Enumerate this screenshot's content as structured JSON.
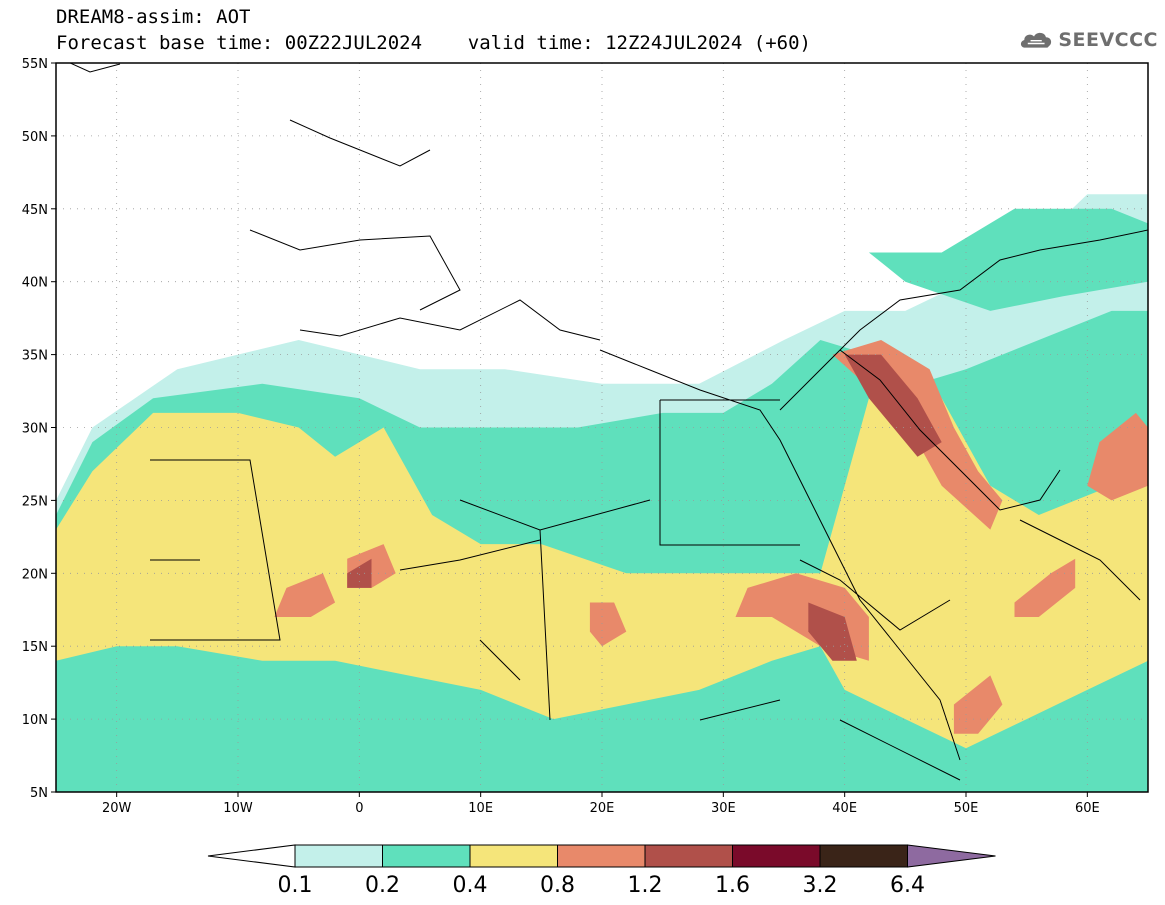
{
  "header": {
    "title_line1": "DREAM8-assim: AOT",
    "title_line2": "Forecast base time: 00Z22JUL2024    valid time: 12Z24JUL2024 (+60)"
  },
  "logo": {
    "text": "SEEVCCC",
    "icon": "cloud-icon",
    "color": "#6e6e6e"
  },
  "map": {
    "lon_range": [
      -25,
      65
    ],
    "lat_range": [
      5,
      55
    ],
    "lat_ticks": [
      {
        "value": 55,
        "label": "55N"
      },
      {
        "value": 50,
        "label": "50N"
      },
      {
        "value": 45,
        "label": "45N"
      },
      {
        "value": 40,
        "label": "40N"
      },
      {
        "value": 35,
        "label": "35N"
      },
      {
        "value": 30,
        "label": "30N"
      },
      {
        "value": 25,
        "label": "25N"
      },
      {
        "value": 20,
        "label": "20N"
      },
      {
        "value": 15,
        "label": "15N"
      },
      {
        "value": 10,
        "label": "10N"
      },
      {
        "value": 5,
        "label": "5N"
      }
    ],
    "lon_ticks": [
      {
        "value": -20,
        "label": "20W"
      },
      {
        "value": -10,
        "label": "10W"
      },
      {
        "value": 0,
        "label": "0"
      },
      {
        "value": 10,
        "label": "10E"
      },
      {
        "value": 20,
        "label": "20E"
      },
      {
        "value": 30,
        "label": "30E"
      },
      {
        "value": 40,
        "label": "40E"
      },
      {
        "value": 50,
        "label": "50E"
      },
      {
        "value": 60,
        "label": "60E"
      }
    ],
    "grid": true,
    "fields": [
      {
        "level": 0,
        "poly": [
          [
            -25,
            25
          ],
          [
            -22,
            30
          ],
          [
            -15,
            34
          ],
          [
            -5,
            36
          ],
          [
            5,
            34
          ],
          [
            12,
            34
          ],
          [
            20,
            33
          ],
          [
            28,
            33
          ],
          [
            35,
            36
          ],
          [
            40,
            38
          ],
          [
            45,
            38
          ],
          [
            50,
            40
          ],
          [
            55,
            42
          ],
          [
            60,
            46
          ],
          [
            65,
            46
          ],
          [
            65,
            5
          ],
          [
            -25,
            5
          ]
        ]
      },
      {
        "level": 1,
        "poly": [
          [
            -25,
            24
          ],
          [
            -22,
            29
          ],
          [
            -17,
            32
          ],
          [
            -8,
            33
          ],
          [
            0,
            32
          ],
          [
            5,
            30
          ],
          [
            12,
            30
          ],
          [
            18,
            30
          ],
          [
            25,
            31
          ],
          [
            30,
            31
          ],
          [
            34,
            33
          ],
          [
            38,
            36
          ],
          [
            42,
            35
          ],
          [
            46,
            33
          ],
          [
            50,
            34
          ],
          [
            56,
            36
          ],
          [
            62,
            38
          ],
          [
            65,
            38
          ],
          [
            65,
            5
          ],
          [
            -25,
            5
          ]
        ]
      },
      {
        "level": 1,
        "poly": [
          [
            42,
            42
          ],
          [
            48,
            42
          ],
          [
            54,
            45
          ],
          [
            62,
            45
          ],
          [
            65,
            44
          ],
          [
            65,
            40
          ],
          [
            58,
            39
          ],
          [
            52,
            38
          ],
          [
            45,
            40
          ]
        ]
      },
      {
        "level": 2,
        "poly": [
          [
            -25,
            23
          ],
          [
            -22,
            27
          ],
          [
            -17,
            31
          ],
          [
            -10,
            31
          ],
          [
            -5,
            30
          ],
          [
            -2,
            28
          ],
          [
            2,
            30
          ],
          [
            4,
            27
          ],
          [
            6,
            24
          ],
          [
            10,
            22
          ],
          [
            15,
            22
          ],
          [
            22,
            20
          ],
          [
            28,
            20
          ],
          [
            34,
            20
          ],
          [
            38,
            20
          ],
          [
            40,
            26
          ],
          [
            42,
            32
          ],
          [
            44,
            34
          ],
          [
            48,
            32
          ],
          [
            52,
            26
          ],
          [
            56,
            24
          ],
          [
            62,
            26
          ],
          [
            65,
            27
          ],
          [
            65,
            14
          ],
          [
            60,
            12
          ],
          [
            55,
            10
          ],
          [
            50,
            8
          ],
          [
            45,
            10
          ],
          [
            40,
            12
          ],
          [
            38,
            15
          ],
          [
            34,
            14
          ],
          [
            28,
            12
          ],
          [
            22,
            11
          ],
          [
            16,
            10
          ],
          [
            10,
            12
          ],
          [
            4,
            13
          ],
          [
            -2,
            14
          ],
          [
            -8,
            14
          ],
          [
            -15,
            15
          ],
          [
            -20,
            15
          ],
          [
            -25,
            14
          ]
        ]
      },
      {
        "level": 3,
        "poly": [
          [
            -6,
            19
          ],
          [
            -3,
            20
          ],
          [
            -2,
            18
          ],
          [
            -4,
            17
          ],
          [
            -7,
            17
          ]
        ]
      },
      {
        "level": 3,
        "poly": [
          [
            -1,
            21
          ],
          [
            2,
            22
          ],
          [
            3,
            20
          ],
          [
            1,
            19
          ],
          [
            -1,
            19
          ]
        ]
      },
      {
        "level": 3,
        "poly": [
          [
            19,
            18
          ],
          [
            21,
            18
          ],
          [
            22,
            16
          ],
          [
            20,
            15
          ],
          [
            19,
            16
          ]
        ]
      },
      {
        "level": 3,
        "poly": [
          [
            32,
            19
          ],
          [
            36,
            20
          ],
          [
            40,
            19
          ],
          [
            42,
            17
          ],
          [
            42,
            14
          ],
          [
            38,
            15
          ],
          [
            34,
            17
          ],
          [
            31,
            17
          ]
        ]
      },
      {
        "level": 3,
        "poly": [
          [
            39,
            35
          ],
          [
            43,
            36
          ],
          [
            47,
            34
          ],
          [
            49,
            30
          ],
          [
            51,
            27
          ],
          [
            53,
            25
          ],
          [
            52,
            23
          ],
          [
            48,
            26
          ],
          [
            46,
            29
          ],
          [
            43,
            32
          ]
        ]
      },
      {
        "level": 3,
        "poly": [
          [
            54,
            18
          ],
          [
            57,
            20
          ],
          [
            59,
            21
          ],
          [
            59,
            19
          ],
          [
            56,
            17
          ],
          [
            54,
            17
          ]
        ]
      },
      {
        "level": 3,
        "poly": [
          [
            49,
            11
          ],
          [
            52,
            13
          ],
          [
            53,
            11
          ],
          [
            51,
            9
          ],
          [
            49,
            9
          ]
        ]
      },
      {
        "level": 3,
        "poly": [
          [
            61,
            29
          ],
          [
            64,
            31
          ],
          [
            65,
            30
          ],
          [
            65,
            26
          ],
          [
            62,
            25
          ],
          [
            60,
            26
          ]
        ]
      },
      {
        "level": 4,
        "poly": [
          [
            40,
            35
          ],
          [
            43,
            35
          ],
          [
            46,
            32
          ],
          [
            48,
            29
          ],
          [
            46,
            28
          ],
          [
            44,
            30
          ],
          [
            42,
            32
          ]
        ]
      },
      {
        "level": 4,
        "poly": [
          [
            37,
            18
          ],
          [
            40,
            17
          ],
          [
            41,
            14
          ],
          [
            39,
            14
          ],
          [
            37,
            16
          ]
        ]
      },
      {
        "level": 4,
        "poly": [
          [
            -1,
            20
          ],
          [
            1,
            21
          ],
          [
            1,
            19
          ],
          [
            -1,
            19
          ]
        ]
      }
    ]
  },
  "colorbar": {
    "colors": [
      "#ffffff",
      "#c3f0ea",
      "#5fe0bc",
      "#f5e57a",
      "#e8896a",
      "#b0504a",
      "#7a0a2a",
      "#3a2418",
      "#8e6aa0"
    ],
    "labels": [
      "0.1",
      "0.2",
      "0.4",
      "0.8",
      "1.2",
      "1.6",
      "3.2",
      "6.4"
    ]
  }
}
